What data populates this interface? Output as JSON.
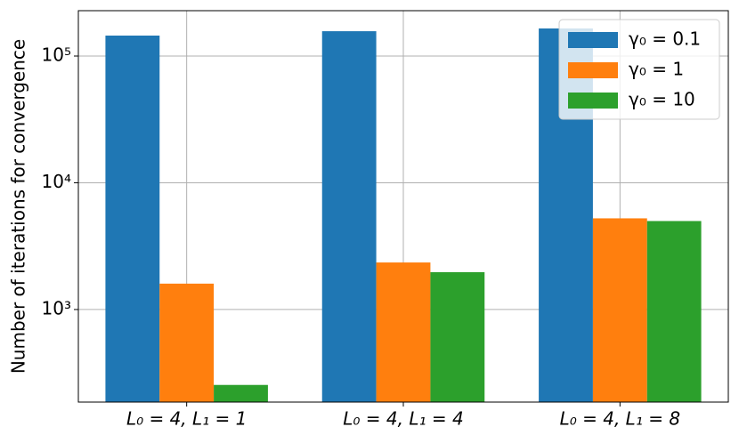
{
  "chart_data": {
    "type": "bar",
    "y_label": "Number of iterations for convergence",
    "categories": [
      "L₀ = 4, L₁ = 1",
      "L₀ = 4, L₁ = 4",
      "L₀ = 4, L₁ = 8"
    ],
    "series": [
      {
        "name": "γ₀ = 0.1",
        "color": "#1f77b4",
        "values": [
          145000,
          157000,
          165000
        ]
      },
      {
        "name": "γ₀ = 1",
        "color": "#ff7f0e",
        "values": [
          1600,
          2350,
          5240
        ]
      },
      {
        "name": "γ₀ = 10",
        "color": "#2ca02c",
        "values": [
          254,
          1970,
          4990
        ]
      }
    ],
    "log_y": true,
    "ylim": [
      186,
      228000
    ],
    "yticks": [
      {
        "value": 1000,
        "label": "10³"
      },
      {
        "value": 10000,
        "label": "10⁴"
      },
      {
        "value": 100000,
        "label": "10⁵"
      }
    ],
    "grid": true,
    "legend": "upper right"
  }
}
